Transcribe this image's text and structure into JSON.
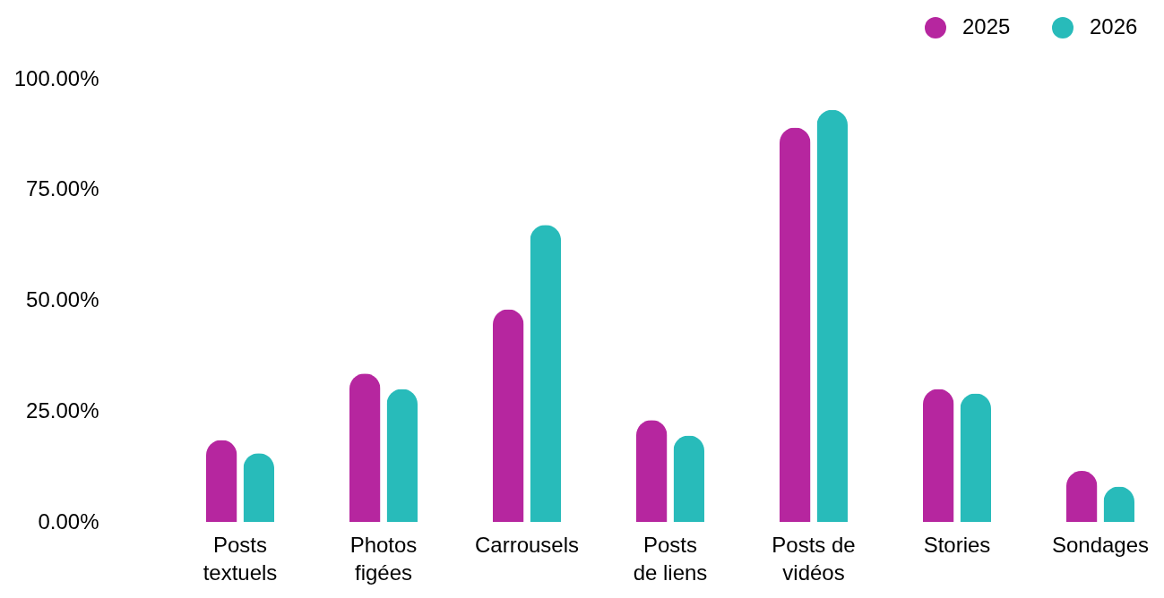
{
  "chart_data": {
    "type": "bar",
    "categories": [
      "Posts\ntextuels",
      "Photos\nfigées",
      "Carrousels",
      "Posts\nde liens",
      "Posts de\nvidéos",
      "Stories",
      "Sondages"
    ],
    "series": [
      {
        "name": "2025",
        "color": "#b6269f",
        "values": [
          18.5,
          33.5,
          48,
          23,
          89,
          30,
          11.5
        ]
      },
      {
        "name": "2026",
        "color": "#28bbba",
        "values": [
          15.5,
          30,
          67,
          19.5,
          93,
          29,
          8
        ]
      }
    ],
    "ylim": [
      0,
      100
    ],
    "yticks": [
      {
        "value": 0,
        "label": "0.00%"
      },
      {
        "value": 25,
        "label": "25.00%"
      },
      {
        "value": 50,
        "label": "50.00%"
      },
      {
        "value": 75,
        "label": "75.00%"
      },
      {
        "value": 100,
        "label": "100.00%"
      }
    ],
    "legend": "top right"
  }
}
